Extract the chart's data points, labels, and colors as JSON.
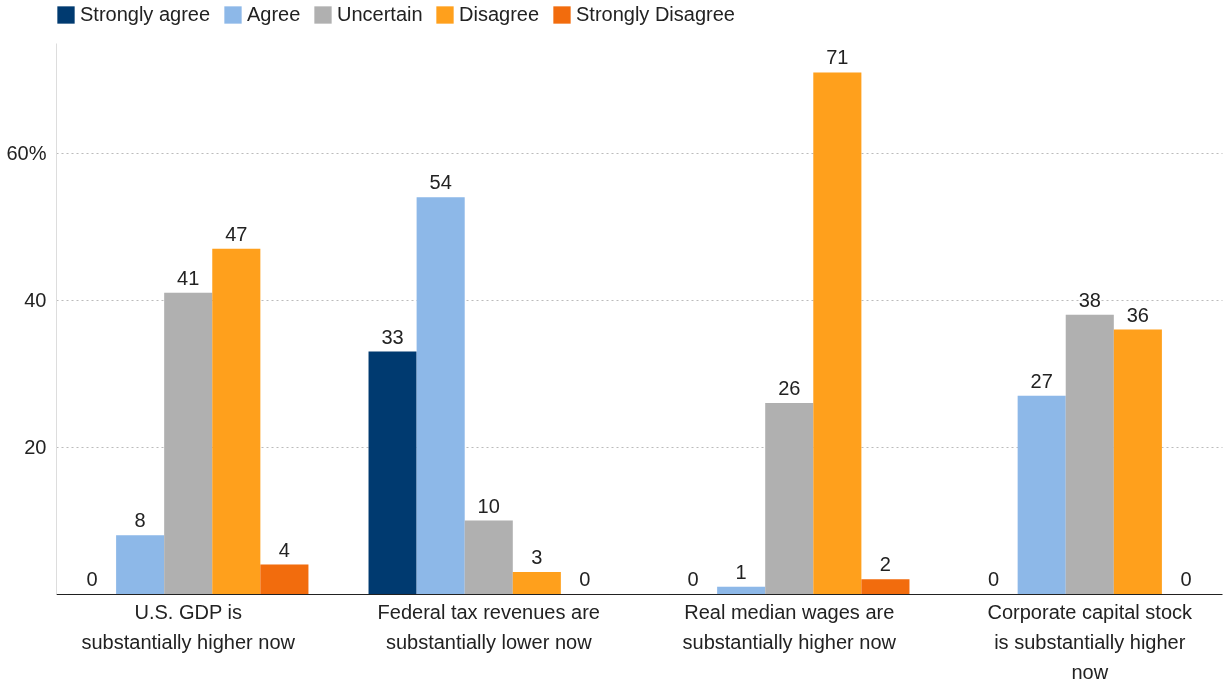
{
  "chart_data": {
    "type": "bar",
    "categories": [
      "U.S. GDP is substantially higher now",
      "Federal tax revenues are substantially lower now",
      "Real median wages are substantially higher now",
      "Corporate capital stock is substantially higher now"
    ],
    "series": [
      {
        "name": "Strongly agree",
        "color": "#003a70",
        "values": [
          0,
          33,
          0,
          0
        ]
      },
      {
        "name": "Agree",
        "color": "#8db8e8",
        "values": [
          8,
          54,
          1,
          27
        ]
      },
      {
        "name": "Uncertain",
        "color": "#b0b0b0",
        "values": [
          41,
          10,
          26,
          38
        ]
      },
      {
        "name": "Disagree",
        "color": "#ffa01c",
        "values": [
          47,
          3,
          71,
          36
        ]
      },
      {
        "name": "Strongly Disagree",
        "color": "#f26c0d",
        "values": [
          4,
          0,
          2,
          0
        ]
      }
    ],
    "ylim": [
      0,
      75
    ],
    "yticks": [
      20,
      40,
      {
        "value": 60,
        "label": "60%"
      }
    ],
    "grid": "y",
    "legend": "top",
    "data_labels": true
  }
}
